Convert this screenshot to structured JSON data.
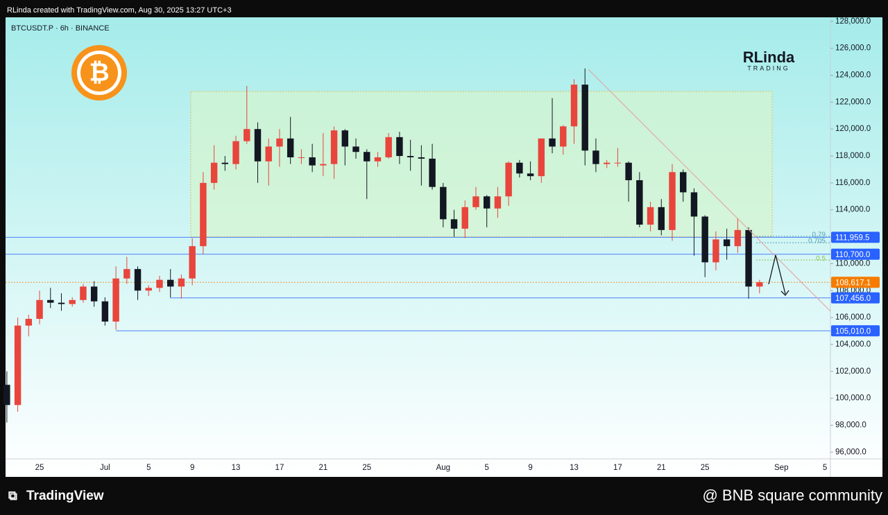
{
  "header": {
    "credit": "RLinda created with TradingView.com, Aug 30, 2025 13:27 UTC+3"
  },
  "logo": {
    "symbol": "₿",
    "brand": "RLinda",
    "brand_sub": "TRADING"
  },
  "footer": {
    "left": "TradingView",
    "right": "@ BNB square community"
  },
  "chart_data": {
    "type": "candlestick",
    "title": "BTCUSDT.P · 6h · BINANCE",
    "categories": [
      null,
      null,
      null,
      "25",
      null,
      null,
      null,
      null,
      null,
      "Jul",
      null,
      null,
      null,
      "5",
      null,
      null,
      null,
      "9",
      null,
      null,
      null,
      "13",
      null,
      null,
      null,
      "17",
      null,
      null,
      null,
      "21",
      null,
      null,
      null,
      "25",
      null,
      null,
      null,
      null,
      null,
      null,
      "Aug",
      null,
      null,
      null,
      "5",
      null,
      null,
      null,
      "9",
      null,
      null,
      null,
      "13",
      null,
      null,
      null,
      "17",
      null,
      null,
      null,
      "21",
      null,
      null,
      null,
      "25",
      null,
      null,
      null,
      null,
      null,
      null,
      "Sep",
      null,
      null,
      null,
      "5"
    ],
    "open": [
      101000,
      99500,
      105400,
      105900,
      107300,
      107100,
      107000,
      107300,
      108300,
      107200,
      105700,
      108900,
      109600,
      108000,
      108200,
      108800,
      108300,
      108900,
      111300,
      116000,
      117500,
      117400,
      119100,
      120000,
      117600,
      118700,
      119300,
      117900,
      117900,
      117300,
      117400,
      119900,
      118700,
      118300,
      117600,
      117900,
      119400,
      118000,
      117900,
      117800,
      115700,
      113300,
      112600,
      114200,
      115000,
      114100,
      115000,
      117500,
      116700,
      116500,
      119300,
      118700,
      120200,
      123300,
      118400,
      117400,
      117500,
      117500,
      116200,
      112900,
      114200,
      112500,
      116800,
      115300,
      113500,
      110100,
      111800,
      111300,
      112500,
      108300,
      null,
      null,
      null,
      null,
      null,
      null
    ],
    "high": [
      102000,
      106000,
      106200,
      108000,
      108200,
      107800,
      107500,
      108500,
      108700,
      107500,
      109800,
      110500,
      109800,
      108400,
      109100,
      109600,
      109200,
      111900,
      116800,
      118800,
      118000,
      119500,
      123200,
      120500,
      119300,
      120000,
      120900,
      118500,
      118900,
      119700,
      120200,
      120000,
      119300,
      118500,
      118300,
      119700,
      119800,
      119200,
      118800,
      118900,
      116000,
      114000,
      114700,
      115700,
      115100,
      115700,
      117600,
      117700,
      117600,
      119300,
      122300,
      120300,
      123700,
      124500,
      119300,
      117700,
      118600,
      117600,
      116800,
      114600,
      114800,
      117400,
      117000,
      115600,
      113600,
      112400,
      112600,
      113400,
      112700,
      108800,
      null,
      null,
      null,
      null,
      null,
      null
    ],
    "low": [
      98200,
      99000,
      104600,
      105500,
      106700,
      106500,
      106800,
      107100,
      106800,
      105400,
      105100,
      108500,
      107300,
      107600,
      107900,
      107500,
      107400,
      108400,
      110700,
      115500,
      116900,
      117000,
      118900,
      116000,
      115800,
      117200,
      117400,
      117400,
      116800,
      116500,
      116300,
      117300,
      117800,
      114800,
      117200,
      117800,
      117400,
      116900,
      115800,
      115500,
      112700,
      112000,
      111900,
      114000,
      112700,
      113400,
      114300,
      116400,
      116200,
      116000,
      118200,
      118100,
      118900,
      117300,
      116800,
      117100,
      117200,
      114600,
      112700,
      112400,
      112100,
      111700,
      114600,
      110600,
      109000,
      109500,
      110300,
      110800,
      107400,
      107800,
      null,
      null,
      null,
      null,
      null,
      null
    ],
    "close": [
      99500,
      105400,
      105900,
      107300,
      107100,
      107000,
      107300,
      108300,
      107200,
      105700,
      108900,
      109600,
      108000,
      108200,
      108800,
      108300,
      108900,
      111300,
      116000,
      117500,
      117400,
      119100,
      120000,
      117600,
      118700,
      119300,
      117900,
      117900,
      117300,
      117400,
      119900,
      118700,
      118300,
      117600,
      117900,
      119400,
      118000,
      117900,
      117800,
      115700,
      113300,
      112600,
      114200,
      115000,
      114100,
      115000,
      117500,
      116700,
      116500,
      119300,
      118700,
      120200,
      123300,
      118400,
      117400,
      117500,
      117500,
      116200,
      112900,
      114200,
      112500,
      116800,
      115300,
      113500,
      110100,
      111800,
      111300,
      112500,
      108300,
      108617.1,
      null,
      null,
      null,
      null,
      null,
      null
    ],
    "up_color": "#e8453c",
    "down_color": "#131722",
    "ylim": [
      95500,
      128300
    ],
    "yticks": [
      {
        "value": 96000,
        "label": "96,000.0"
      },
      {
        "value": 98000,
        "label": "98,000.0"
      },
      {
        "value": 100000,
        "label": "100,000.0"
      },
      {
        "value": 102000,
        "label": "102,000.0"
      },
      {
        "value": 104000,
        "label": "104,000.0"
      },
      {
        "value": 106000,
        "label": "106,000.0"
      },
      {
        "value": 108000,
        "label": "108,000.0"
      },
      {
        "value": 110000,
        "label": "110,000.0"
      },
      {
        "value": 112000,
        "label": "112,000.0"
      },
      {
        "value": 114000,
        "label": "114,000.0"
      },
      {
        "value": 116000,
        "label": "116,000.0"
      },
      {
        "value": 118000,
        "label": "118,000.0"
      },
      {
        "value": 120000,
        "label": "120,000.0"
      },
      {
        "value": 122000,
        "label": "122,000.0"
      },
      {
        "value": 124000,
        "label": "124,000.0"
      },
      {
        "value": 126000,
        "label": "126,000.0"
      },
      {
        "value": 128000,
        "label": "128,000.0"
      }
    ],
    "levels": [
      {
        "value": 111959.5,
        "label": "111,959.5",
        "color": "#2962ff"
      },
      {
        "value": 110700,
        "label": "110,700.0",
        "color": "#2962ff"
      },
      {
        "value": 108617.1,
        "label": "108,617.1",
        "color": "#f57c00"
      },
      {
        "value": 107456,
        "label": "107,456.0",
        "color": "#2962ff"
      },
      {
        "value": 105010,
        "label": "105,010.0",
        "color": "#2962ff"
      }
    ],
    "fib_levels": [
      {
        "ratio": 0.79,
        "price": 112030
      },
      {
        "ratio": 0.705,
        "price": 111560
      },
      {
        "ratio": 0.5,
        "price": 110270
      }
    ],
    "zone": {
      "low": 112000,
      "high": 122800
    }
  }
}
